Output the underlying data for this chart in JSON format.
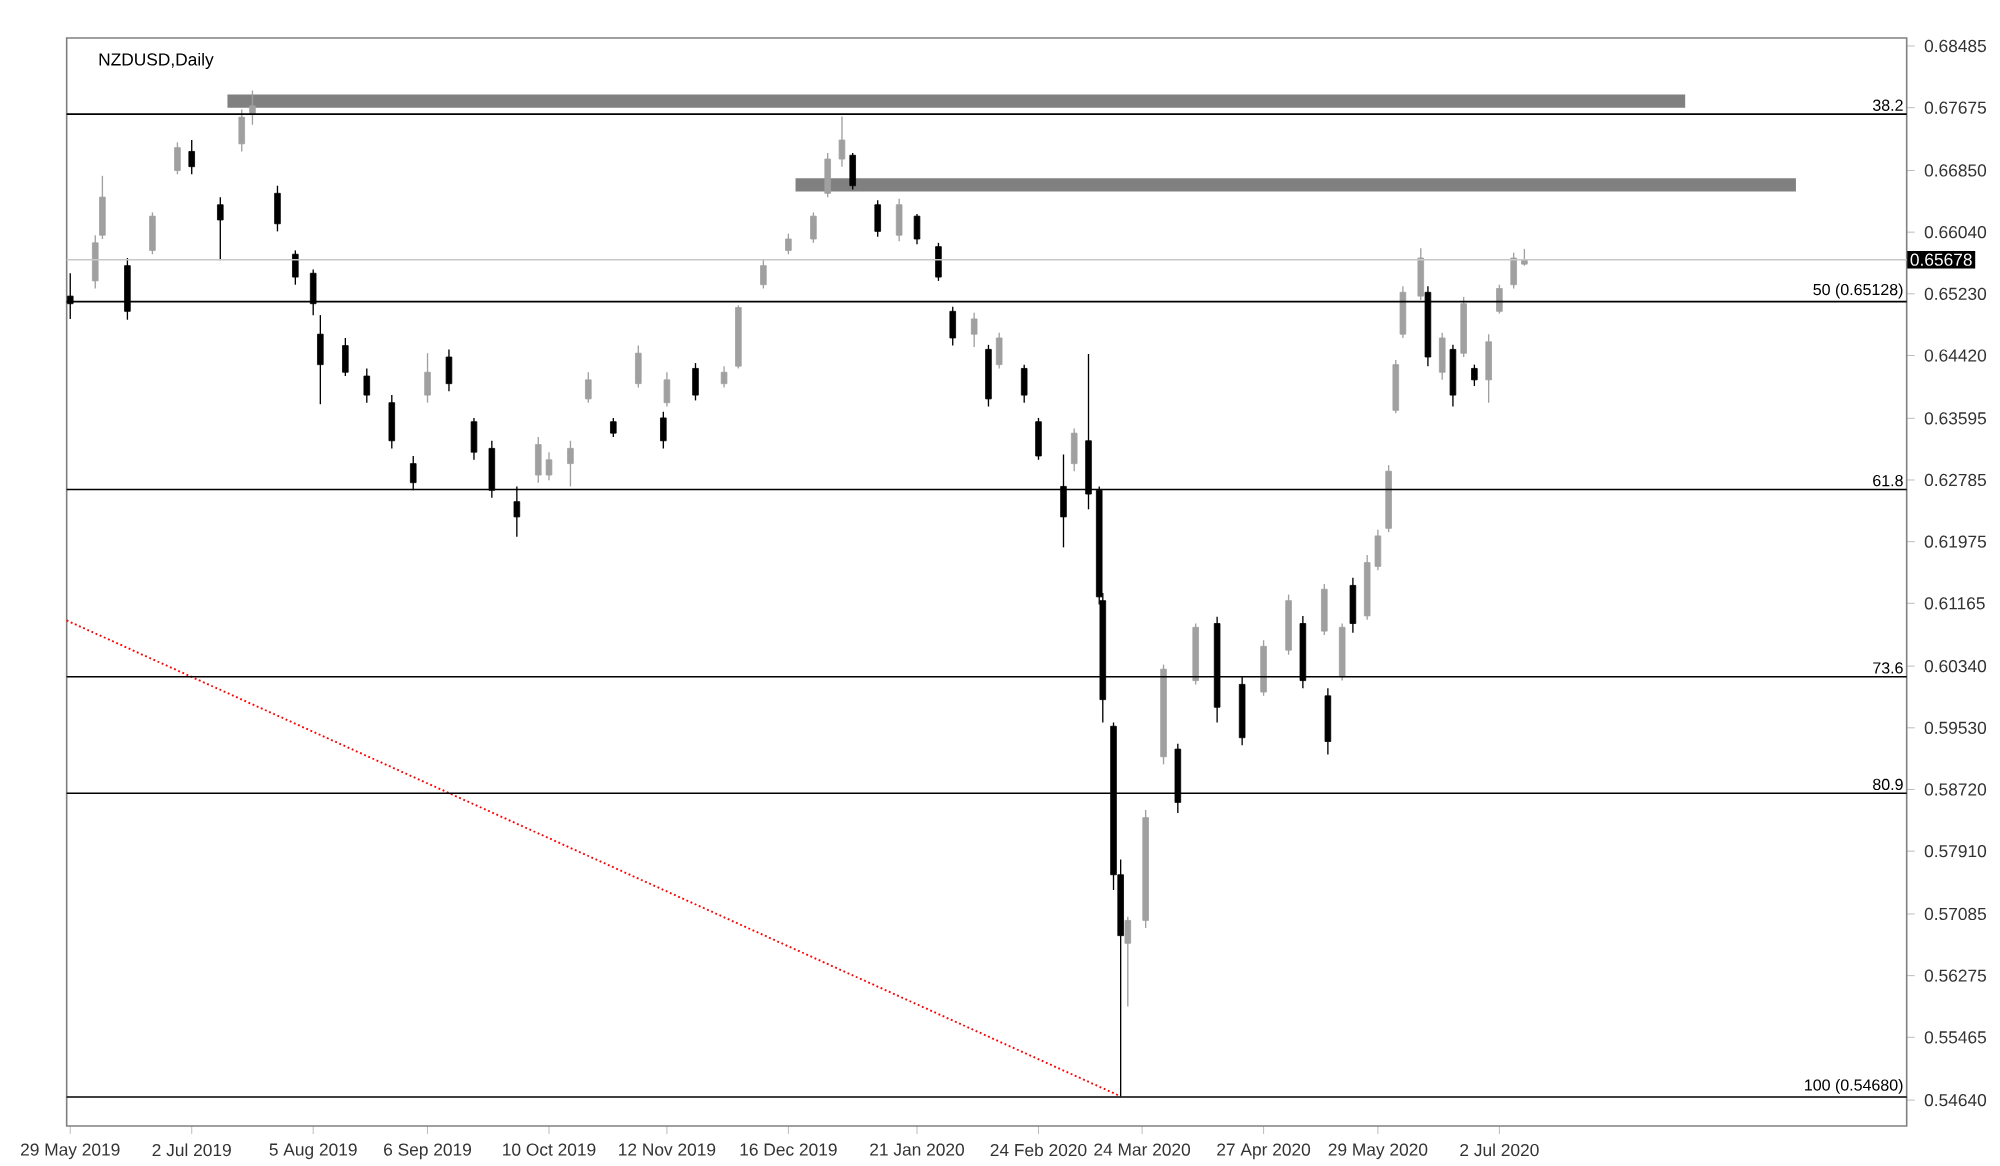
{
  "chart_data": {
    "type": "candlestick",
    "title": "NZDUSD,Daily",
    "xlim": [
      "2019-05-28",
      "2020-10-24"
    ],
    "xticks": [
      {
        "value": "2019-05-29",
        "label": "29 May 2019"
      },
      {
        "value": "2019-07-02",
        "label": "2 Jul 2019"
      },
      {
        "value": "2019-08-05",
        "label": "5 Aug 2019"
      },
      {
        "value": "2019-09-06",
        "label": "6 Sep 2019"
      },
      {
        "value": "2019-10-10",
        "label": "10 Oct 2019"
      },
      {
        "value": "2019-11-12",
        "label": "12 Nov 2019"
      },
      {
        "value": "2019-12-16",
        "label": "16 Dec 2019"
      },
      {
        "value": "2020-01-21",
        "label": "21 Jan 2020"
      },
      {
        "value": "2020-02-24",
        "label": "24 Feb 2020"
      },
      {
        "value": "2020-03-24",
        "label": "24 Mar 2020"
      },
      {
        "value": "2020-04-27",
        "label": "27 Apr 2020"
      },
      {
        "value": "2020-05-29",
        "label": "29 May 2020"
      },
      {
        "value": "2020-07-02",
        "label": "2 Jul 2020"
      }
    ],
    "ylim": [
      0.543,
      0.6859
    ],
    "yticks": [
      0.68485,
      0.67675,
      {
        "value": 0.6685,
        "label": "0.66850"
      },
      {
        "value": 0.6604,
        "label": "0.66040"
      },
      {
        "value": 0.6523,
        "label": "0.65230"
      },
      {
        "value": 0.6442,
        "label": "0.64420"
      },
      0.63595,
      0.62785,
      0.61975,
      0.61165,
      {
        "value": 0.6034,
        "label": "0.60340"
      },
      {
        "value": 0.5953,
        "label": "0.59530"
      },
      {
        "value": 0.5872,
        "label": "0.58720"
      },
      {
        "value": 0.5791,
        "label": "0.57910"
      },
      0.57085,
      0.56275,
      0.55465,
      {
        "value": 0.5464,
        "label": "0.54640"
      }
    ],
    "x": [
      "2019-05-29",
      "2019-06-05",
      "2019-06-07",
      "2019-06-14",
      "2019-06-21",
      "2019-06-28",
      "2019-07-02",
      "2019-07-10",
      "2019-07-16",
      "2019-07-19",
      "2019-07-26",
      "2019-07-31",
      "2019-08-05",
      "2019-08-07",
      "2019-08-14",
      "2019-08-20",
      "2019-08-27",
      "2019-09-02",
      "2019-09-06",
      "2019-09-12",
      "2019-09-19",
      "2019-09-24",
      "2019-10-01",
      "2019-10-07",
      "2019-10-10",
      "2019-10-16",
      "2019-10-21",
      "2019-10-28",
      "2019-11-04",
      "2019-11-11",
      "2019-11-12",
      "2019-11-20",
      "2019-11-28",
      "2019-12-02",
      "2019-12-09",
      "2019-12-16",
      "2019-12-23",
      "2019-12-27",
      "2019-12-31",
      "2020-01-03",
      "2020-01-10",
      "2020-01-16",
      "2020-01-21",
      "2020-01-27",
      "2020-01-31",
      "2020-02-06",
      "2020-02-10",
      "2020-02-13",
      "2020-02-20",
      "2020-02-24",
      "2020-03-02",
      "2020-03-05",
      "2020-03-09",
      "2020-03-12",
      "2020-03-13",
      "2020-03-16",
      "2020-03-18",
      "2020-03-20",
      "2020-03-25",
      "2020-03-30",
      "2020-04-03",
      "2020-04-08",
      "2020-04-14",
      "2020-04-21",
      "2020-04-27",
      "2020-05-04",
      "2020-05-08",
      "2020-05-14",
      "2020-05-15",
      "2020-05-19",
      "2020-05-22",
      "2020-05-26",
      "2020-05-29",
      "2020-06-01",
      "2020-06-03",
      "2020-06-05",
      "2020-06-10",
      "2020-06-12",
      "2020-06-16",
      "2020-06-19",
      "2020-06-22",
      "2020-06-25",
      "2020-06-29",
      "2020-07-02",
      "2020-07-06",
      "2020-07-09"
    ],
    "ohlc": [
      [
        0.652,
        0.655,
        0.649,
        0.651
      ],
      [
        0.654,
        0.66,
        0.653,
        0.659
      ],
      [
        0.66,
        0.6678,
        0.6595,
        0.665
      ],
      [
        0.656,
        0.657,
        0.6489,
        0.65
      ],
      [
        0.658,
        0.663,
        0.6575,
        0.6625
      ],
      [
        0.6685,
        0.6722,
        0.668,
        0.6715
      ],
      [
        0.671,
        0.6725,
        0.668,
        0.669
      ],
      [
        0.664,
        0.665,
        0.6567,
        0.662
      ],
      [
        0.672,
        0.6765,
        0.671,
        0.6755
      ],
      [
        0.676,
        0.679,
        0.6745,
        0.677
      ],
      [
        0.6655,
        0.6665,
        0.6605,
        0.6615
      ],
      [
        0.6575,
        0.658,
        0.6535,
        0.6545
      ],
      [
        0.655,
        0.6555,
        0.6495,
        0.651
      ],
      [
        0.647,
        0.6495,
        0.6378,
        0.643
      ],
      [
        0.6455,
        0.6465,
        0.6415,
        0.642
      ],
      [
        0.6415,
        0.6425,
        0.638,
        0.639
      ],
      [
        0.638,
        0.639,
        0.632,
        0.633
      ],
      [
        0.63,
        0.631,
        0.6265,
        0.6275
      ],
      [
        0.639,
        0.6445,
        0.638,
        0.642
      ],
      [
        0.644,
        0.645,
        0.6395,
        0.6405
      ],
      [
        0.6355,
        0.636,
        0.6305,
        0.6315
      ],
      [
        0.632,
        0.633,
        0.6255,
        0.6265
      ],
      [
        0.625,
        0.627,
        0.6204,
        0.623
      ],
      [
        0.6285,
        0.6335,
        0.6275,
        0.6325
      ],
      [
        0.6285,
        0.6315,
        0.6278,
        0.6305
      ],
      [
        0.63,
        0.633,
        0.627,
        0.632
      ],
      [
        0.6385,
        0.642,
        0.638,
        0.641
      ],
      [
        0.6355,
        0.636,
        0.6335,
        0.634
      ],
      [
        0.6405,
        0.6455,
        0.64,
        0.6445
      ],
      [
        0.636,
        0.6368,
        0.632,
        0.633
      ],
      [
        0.638,
        0.642,
        0.6375,
        0.641
      ],
      [
        0.6425,
        0.6432,
        0.6383,
        0.639
      ],
      [
        0.6405,
        0.6428,
        0.64,
        0.642
      ],
      [
        0.6428,
        0.6508,
        0.6425,
        0.6505
      ],
      [
        0.6535,
        0.6568,
        0.653,
        0.656
      ],
      [
        0.658,
        0.6602,
        0.6575,
        0.6595
      ],
      [
        0.6595,
        0.663,
        0.659,
        0.6625
      ],
      [
        0.6655,
        0.6708,
        0.665,
        0.67
      ],
      [
        0.67,
        0.6756,
        0.669,
        0.6725
      ],
      [
        0.6705,
        0.6708,
        0.666,
        0.6665
      ],
      [
        0.664,
        0.6646,
        0.6598,
        0.6605
      ],
      [
        0.66,
        0.6648,
        0.6592,
        0.664
      ],
      [
        0.6625,
        0.6628,
        0.6588,
        0.6595
      ],
      [
        0.6585,
        0.659,
        0.654,
        0.6545
      ],
      [
        0.65,
        0.6506,
        0.6455,
        0.6465
      ],
      [
        0.647,
        0.6498,
        0.6453,
        0.649
      ],
      [
        0.645,
        0.6456,
        0.6375,
        0.6385
      ],
      [
        0.643,
        0.6472,
        0.6425,
        0.6465
      ],
      [
        0.6425,
        0.643,
        0.638,
        0.639
      ],
      [
        0.6355,
        0.636,
        0.6305,
        0.631
      ],
      [
        0.627,
        0.6312,
        0.619,
        0.623
      ],
      [
        0.63,
        0.6346,
        0.629,
        0.634
      ],
      [
        0.633,
        0.6444,
        0.624,
        0.626
      ],
      [
        0.6265,
        0.627,
        0.6115,
        0.6125
      ],
      [
        0.612,
        0.613,
        0.596,
        0.599
      ],
      [
        0.5955,
        0.596,
        0.574,
        0.576
      ],
      [
        0.576,
        0.578,
        0.5469,
        0.568
      ],
      [
        0.567,
        0.5705,
        0.5587,
        0.57
      ],
      [
        0.57,
        0.5845,
        0.569,
        0.5835
      ],
      [
        0.5915,
        0.6036,
        0.5905,
        0.603
      ],
      [
        0.5925,
        0.5932,
        0.5841,
        0.5855
      ],
      [
        0.6015,
        0.609,
        0.601,
        0.6085
      ],
      [
        0.609,
        0.6099,
        0.596,
        0.598
      ],
      [
        0.601,
        0.602,
        0.593,
        0.594
      ],
      [
        0.6,
        0.6068,
        0.5995,
        0.606
      ],
      [
        0.6055,
        0.6128,
        0.6049,
        0.612
      ],
      [
        0.609,
        0.61,
        0.6005,
        0.6015
      ],
      [
        0.608,
        0.6142,
        0.6075,
        0.6135
      ],
      [
        0.5995,
        0.6005,
        0.5918,
        0.5935
      ],
      [
        0.602,
        0.609,
        0.6015,
        0.6085
      ],
      [
        0.614,
        0.615,
        0.6078,
        0.609
      ],
      [
        0.61,
        0.618,
        0.6095,
        0.617
      ],
      [
        0.6165,
        0.6213,
        0.616,
        0.6205
      ],
      [
        0.6215,
        0.6298,
        0.621,
        0.629
      ],
      [
        0.637,
        0.6436,
        0.6366,
        0.643
      ],
      [
        0.647,
        0.6533,
        0.6465,
        0.6525
      ],
      [
        0.652,
        0.6583,
        0.6515,
        0.657
      ],
      [
        0.6525,
        0.6533,
        0.6428,
        0.644
      ],
      [
        0.642,
        0.6472,
        0.641,
        0.6465
      ],
      [
        0.645,
        0.6456,
        0.6375,
        0.639
      ],
      [
        0.6445,
        0.6519,
        0.644,
        0.651
      ],
      [
        0.6425,
        0.643,
        0.6402,
        0.641
      ],
      [
        0.641,
        0.647,
        0.638,
        0.646
      ],
      [
        0.65,
        0.6535,
        0.6497,
        0.653
      ],
      [
        0.6535,
        0.6577,
        0.653,
        0.657
      ],
      [
        0.6562,
        0.6582,
        0.656,
        0.65678
      ]
    ],
    "series": [
      {
        "type": "line",
        "color": "#808080",
        "line_style": "solid",
        "x": [
          "2019-07-12",
          "2020-08-23"
        ],
        "values": [
          0.6776,
          0.6776
        ]
      },
      {
        "type": "line",
        "color": "#808080",
        "line_style": "solid",
        "x": [
          "2019-12-18",
          "2020-09-23"
        ],
        "values": [
          0.6666,
          0.6666
        ]
      },
      {
        "type": "line",
        "color": "#ff0000",
        "line_style": "dotted",
        "x": [
          "2019-05-28",
          "2020-03-18"
        ],
        "values": [
          0.6094,
          0.5469
        ]
      }
    ],
    "annotations": [
      {
        "text": "38.2",
        "y": 0.6759
      },
      {
        "text": "61.8",
        "y": 0.6266
      },
      {
        "text": "73.6",
        "y": 0.602
      },
      {
        "text": "80.9",
        "y": 0.5867
      }
    ],
    "ref_lines": [
      {
        "axis": "y",
        "value": 0.6759
      },
      {
        "axis": "y",
        "value": 0.65128,
        "label": "50 (0.65128)"
      },
      {
        "axis": "y",
        "value": 0.6266
      },
      {
        "axis": "y",
        "value": 0.602
      },
      {
        "axis": "y",
        "value": 0.5867
      },
      {
        "axis": "y",
        "value": 0.5468,
        "label": "100 (0.54680)"
      },
      {
        "axis": "y",
        "value": 0.65678,
        "label": "0.65678",
        "color": "#c8c8c8"
      }
    ]
  }
}
